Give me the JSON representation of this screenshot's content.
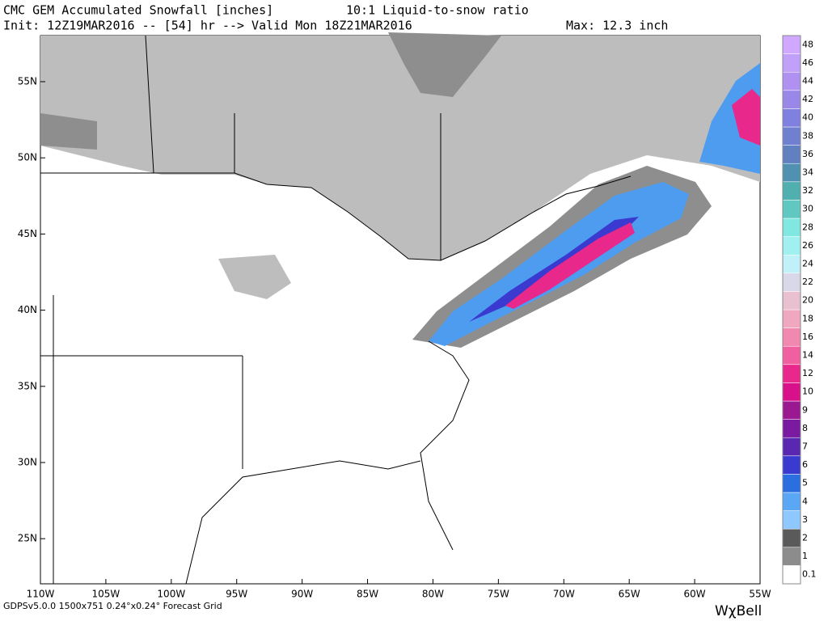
{
  "header": {
    "title": "CMC GEM Accumulated Snowfall [inches]",
    "ratio": "10:1 Liquid-to-snow ratio",
    "init_valid": "Init: 12Z19MAR2016 -- [54] hr --> Valid Mon 18Z21MAR2016",
    "max": "Max: 12.3 inch"
  },
  "axes": {
    "lon_labels": [
      "110W",
      "105W",
      "100W",
      "95W",
      "90W",
      "85W",
      "80W",
      "75W",
      "70W",
      "65W",
      "60W",
      "55W"
    ],
    "lat_labels": [
      "55N",
      "50N",
      "45N",
      "40N",
      "35N",
      "30N",
      "25N"
    ]
  },
  "colorbar": {
    "levels": [
      "0.1",
      "1",
      "2",
      "3",
      "4",
      "5",
      "6",
      "7",
      "8",
      "9",
      "10",
      "12",
      "14",
      "16",
      "18",
      "20",
      "22",
      "24",
      "26",
      "28",
      "30",
      "32",
      "34",
      "36",
      "38",
      "40",
      "42",
      "44",
      "46",
      "48"
    ],
    "colors": [
      "#ffffff",
      "#8c8c8c",
      "#5a5a5a",
      "#8ec8ff",
      "#5aa8f5",
      "#2a6ee0",
      "#3a3ad0",
      "#5a28b0",
      "#7a1aa0",
      "#9a1890",
      "#d8108a",
      "#e8288a",
      "#f060a0",
      "#f088b0",
      "#f0a8c0",
      "#e8c0d0",
      "#d8d8e8",
      "#c0f0f8",
      "#a0f0f0",
      "#80e8e0",
      "#60c8c0",
      "#50b0b0",
      "#5090b0",
      "#6080c0",
      "#7080d0",
      "#8080e0",
      "#9a88e8",
      "#b090f0",
      "#c0a0f8",
      "#d0a8ff"
    ]
  },
  "footer": {
    "model": "GDPSv5.0.0 1500x751 0.24°x0.24° Forecast Grid",
    "logo": "WχBell"
  }
}
